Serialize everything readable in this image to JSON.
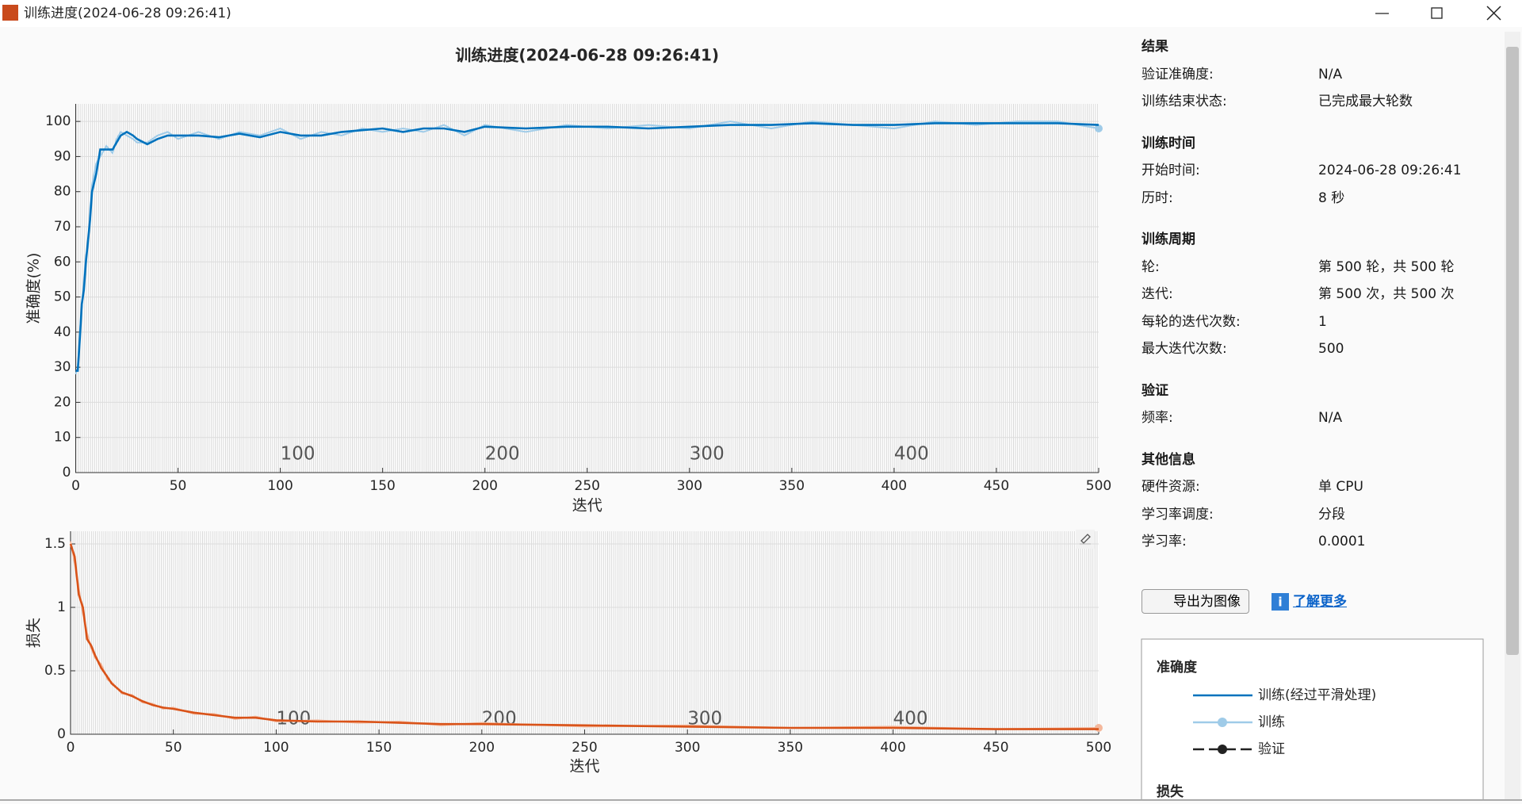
{
  "window": {
    "title": "训练进度(2024-06-28 09:26:41)"
  },
  "chart_data": [
    {
      "type": "line",
      "title": "训练进度(2024-06-28 09:26:41)",
      "x_label": "迭代",
      "y_label": "准确度(%)",
      "xlim": [
        0,
        500
      ],
      "xticks": [
        0,
        50,
        100,
        150,
        200,
        250,
        300,
        350,
        400,
        450,
        500
      ],
      "ylim": [
        0,
        105
      ],
      "yticks": [
        0,
        10,
        20,
        30,
        40,
        50,
        60,
        70,
        80,
        90,
        100
      ],
      "grid": true,
      "epoch_labels": [
        100,
        200,
        300,
        400
      ],
      "x": [
        0,
        1,
        2,
        3,
        4,
        5,
        6,
        7,
        8,
        10,
        12,
        15,
        18,
        20,
        22,
        25,
        28,
        30,
        35,
        40,
        45,
        50,
        60,
        70,
        80,
        90,
        100,
        110,
        120,
        130,
        140,
        150,
        160,
        170,
        180,
        190,
        200,
        220,
        240,
        260,
        280,
        300,
        320,
        340,
        360,
        380,
        400,
        420,
        440,
        460,
        480,
        500
      ],
      "series": [
        {
          "name": "训练(经过平滑处理)",
          "color": "#0072bd",
          "values": [
            29,
            29,
            38,
            48,
            52,
            60,
            66,
            72,
            80,
            85,
            92,
            92,
            92,
            94,
            96,
            97,
            96,
            95,
            93.5,
            95,
            96,
            96,
            96,
            95.5,
            96.5,
            95.5,
            97,
            96,
            96,
            97,
            97.5,
            98,
            97,
            98,
            98,
            97,
            98.5,
            98,
            98.5,
            98.5,
            98,
            98.5,
            99,
            99,
            99.5,
            99,
            99,
            99.5,
            99.5,
            99.5,
            99.5,
            99
          ]
        },
        {
          "name": "训练",
          "color": "#9fcbe8",
          "values": [
            28,
            30,
            40,
            47,
            55,
            62,
            64,
            75,
            82,
            88,
            90,
            93,
            91,
            95,
            97,
            96,
            95,
            94,
            94,
            96,
            97,
            95,
            97,
            95,
            97,
            96,
            98,
            95,
            97,
            96,
            98,
            97,
            98,
            97,
            99,
            96,
            99,
            97,
            99,
            98,
            99,
            98,
            100,
            98,
            100,
            99,
            98,
            100,
            99,
            100,
            100,
            98
          ]
        }
      ]
    },
    {
      "type": "line",
      "x_label": "迭代",
      "y_label": "损失",
      "xlim": [
        0,
        500
      ],
      "xticks": [
        0,
        50,
        100,
        150,
        200,
        250,
        300,
        350,
        400,
        450,
        500
      ],
      "ylim": [
        0,
        1.6
      ],
      "yticks": [
        0,
        0.5,
        1,
        1.5
      ],
      "grid": true,
      "epoch_labels": [
        100,
        200,
        300,
        400
      ],
      "x": [
        0,
        2,
        4,
        6,
        8,
        10,
        12,
        15,
        18,
        20,
        25,
        30,
        35,
        40,
        45,
        50,
        60,
        70,
        80,
        90,
        100,
        120,
        140,
        160,
        180,
        200,
        250,
        300,
        350,
        400,
        450,
        500
      ],
      "series": [
        {
          "color": "#d95319",
          "values": [
            1.5,
            1.4,
            1.1,
            1.0,
            0.75,
            0.7,
            0.62,
            0.52,
            0.45,
            0.4,
            0.33,
            0.3,
            0.26,
            0.23,
            0.21,
            0.2,
            0.17,
            0.15,
            0.13,
            0.13,
            0.11,
            0.1,
            0.1,
            0.09,
            0.08,
            0.08,
            0.07,
            0.06,
            0.05,
            0.05,
            0.04,
            0.04
          ]
        },
        {
          "color": "#f4b89c",
          "values": [
            1.52,
            1.35,
            1.15,
            0.95,
            0.8,
            0.68,
            0.6,
            0.55,
            0.43,
            0.41,
            0.32,
            0.31,
            0.25,
            0.24,
            0.2,
            0.21,
            0.16,
            0.16,
            0.12,
            0.14,
            0.1,
            0.11,
            0.09,
            0.1,
            0.07,
            0.09,
            0.06,
            0.07,
            0.05,
            0.06,
            0.04,
            0.05
          ]
        }
      ]
    }
  ],
  "panel": {
    "sections": [
      {
        "heading": "结果",
        "rows": [
          [
            "验证准确度:",
            "N/A"
          ],
          [
            "训练结束状态:",
            "已完成最大轮数"
          ]
        ]
      },
      {
        "heading": "训练时间",
        "rows": [
          [
            "开始时间:",
            "2024-06-28 09:26:41"
          ],
          [
            "历时:",
            "8 秒"
          ]
        ]
      },
      {
        "heading": "训练周期",
        "rows": [
          [
            "轮:",
            "第 500 轮，共 500 轮"
          ],
          [
            "迭代:",
            "第 500 次，共 500 次"
          ],
          [
            "每轮的迭代次数:",
            "1"
          ],
          [
            "最大迭代次数:",
            "500"
          ]
        ]
      },
      {
        "heading": "验证",
        "rows": [
          [
            "频率:",
            "N/A"
          ]
        ]
      },
      {
        "heading": "其他信息",
        "rows": [
          [
            "硬件资源:",
            "单 CPU"
          ],
          [
            "学习率调度:",
            "分段"
          ],
          [
            "学习率:",
            "0.0001"
          ]
        ]
      }
    ],
    "export_button": "导出为图像",
    "learn_more": "了解更多",
    "legend": {
      "title": "准确度",
      "validation": "验证",
      "next_title": "损失"
    }
  }
}
